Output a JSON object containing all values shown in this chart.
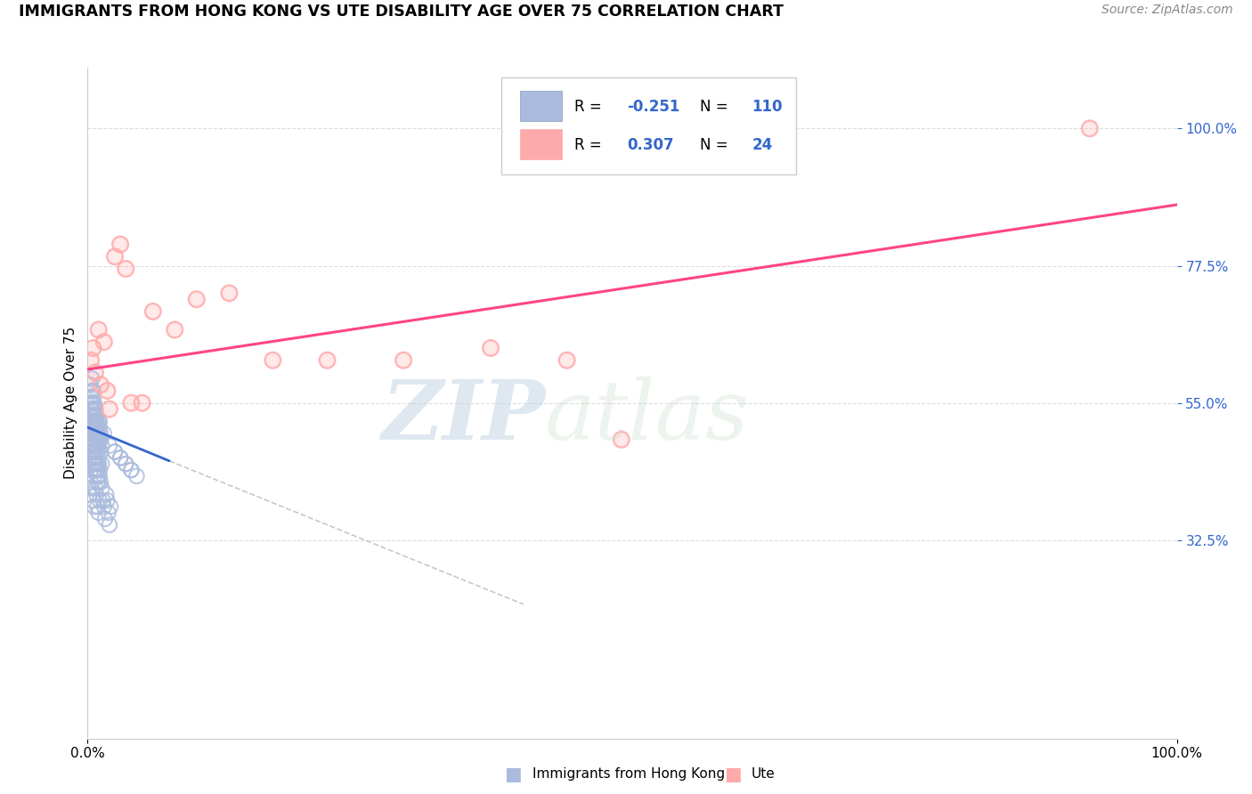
{
  "title": "IMMIGRANTS FROM HONG KONG VS UTE DISABILITY AGE OVER 75 CORRELATION CHART",
  "source": "Source: ZipAtlas.com",
  "ylabel": "Disability Age Over 75",
  "legend_label1": "Immigrants from Hong Kong",
  "legend_label2": "Ute",
  "r1": -0.251,
  "n1": 110,
  "r2": 0.307,
  "n2": 24,
  "color_blue": "#AABBDD",
  "color_pink": "#FFAAAA",
  "line_color_blue": "#3366CC",
  "line_color_pink": "#FF4488",
  "dashed_color": "#BBBBBB",
  "watermark_zip": "ZIP",
  "watermark_atlas": "atlas",
  "background_color": "#FFFFFF",
  "grid_color": "#DDDDDD",
  "ytick_vals": [
    0.325,
    0.55,
    0.775,
    1.0
  ],
  "ytick_labels": [
    "32.5%",
    "55.0%",
    "77.5%",
    "100.0%"
  ],
  "xtick_vals": [
    0.0,
    1.0
  ],
  "xtick_labels": [
    "0.0%",
    "100.0%"
  ],
  "blue_line_x": [
    0.0,
    0.075
  ],
  "blue_line_y": [
    0.51,
    0.455
  ],
  "dashed_line_x": [
    0.075,
    0.4
  ],
  "dashed_line_y": [
    0.455,
    0.22
  ],
  "pink_line_x": [
    0.0,
    1.0
  ],
  "pink_line_y": [
    0.605,
    0.875
  ],
  "blue_x": [
    0.002,
    0.002,
    0.003,
    0.004,
    0.004,
    0.005,
    0.005,
    0.005,
    0.005,
    0.006,
    0.006,
    0.006,
    0.006,
    0.007,
    0.007,
    0.007,
    0.007,
    0.008,
    0.008,
    0.008,
    0.009,
    0.009,
    0.009,
    0.01,
    0.01,
    0.01,
    0.01,
    0.011,
    0.011,
    0.012,
    0.012,
    0.013,
    0.013,
    0.003,
    0.004,
    0.005,
    0.006,
    0.007,
    0.008,
    0.009,
    0.01,
    0.011,
    0.012,
    0.002,
    0.003,
    0.004,
    0.005,
    0.006,
    0.007,
    0.008,
    0.002,
    0.003,
    0.004,
    0.005,
    0.006,
    0.007,
    0.008,
    0.009,
    0.01,
    0.011,
    0.002,
    0.003,
    0.004,
    0.005,
    0.006,
    0.007,
    0.008,
    0.009,
    0.01,
    0.011,
    0.002,
    0.003,
    0.004,
    0.005,
    0.006,
    0.007,
    0.008,
    0.009,
    0.01,
    0.011,
    0.012,
    0.013,
    0.014,
    0.015,
    0.016,
    0.017,
    0.018,
    0.019,
    0.02,
    0.021,
    0.002,
    0.003,
    0.004,
    0.005,
    0.006,
    0.007,
    0.008,
    0.009,
    0.01,
    0.025,
    0.03,
    0.035,
    0.04,
    0.045,
    0.015,
    0.02,
    0.025,
    0.03,
    0.035,
    0.04
  ],
  "blue_y": [
    0.52,
    0.5,
    0.53,
    0.51,
    0.54,
    0.5,
    0.52,
    0.49,
    0.55,
    0.51,
    0.5,
    0.53,
    0.48,
    0.52,
    0.5,
    0.47,
    0.54,
    0.5,
    0.48,
    0.52,
    0.49,
    0.51,
    0.47,
    0.5,
    0.52,
    0.48,
    0.45,
    0.51,
    0.49,
    0.47,
    0.5,
    0.45,
    0.48,
    0.55,
    0.57,
    0.56,
    0.54,
    0.53,
    0.52,
    0.5,
    0.48,
    0.52,
    0.49,
    0.58,
    0.56,
    0.59,
    0.57,
    0.55,
    0.54,
    0.53,
    0.46,
    0.44,
    0.47,
    0.45,
    0.43,
    0.46,
    0.44,
    0.42,
    0.45,
    0.43,
    0.47,
    0.49,
    0.48,
    0.46,
    0.44,
    0.47,
    0.45,
    0.44,
    0.46,
    0.44,
    0.4,
    0.42,
    0.41,
    0.39,
    0.38,
    0.41,
    0.4,
    0.38,
    0.37,
    0.39,
    0.42,
    0.41,
    0.39,
    0.38,
    0.36,
    0.4,
    0.39,
    0.37,
    0.35,
    0.38,
    0.5,
    0.49,
    0.48,
    0.47,
    0.46,
    0.45,
    0.44,
    0.43,
    0.42,
    0.47,
    0.46,
    0.45,
    0.44,
    0.43,
    0.5,
    0.48,
    0.47,
    0.46,
    0.45,
    0.44
  ],
  "pink_x": [
    0.003,
    0.005,
    0.007,
    0.01,
    0.012,
    0.015,
    0.018,
    0.02,
    0.025,
    0.03,
    0.035,
    0.04,
    0.05,
    0.06,
    0.08,
    0.1,
    0.13,
    0.17,
    0.22,
    0.29,
    0.37,
    0.44,
    0.49,
    0.92
  ],
  "pink_y": [
    0.62,
    0.64,
    0.6,
    0.67,
    0.58,
    0.65,
    0.57,
    0.54,
    0.79,
    0.81,
    0.77,
    0.55,
    0.55,
    0.7,
    0.67,
    0.72,
    0.73,
    0.62,
    0.62,
    0.62,
    0.64,
    0.62,
    0.49,
    1.0
  ]
}
